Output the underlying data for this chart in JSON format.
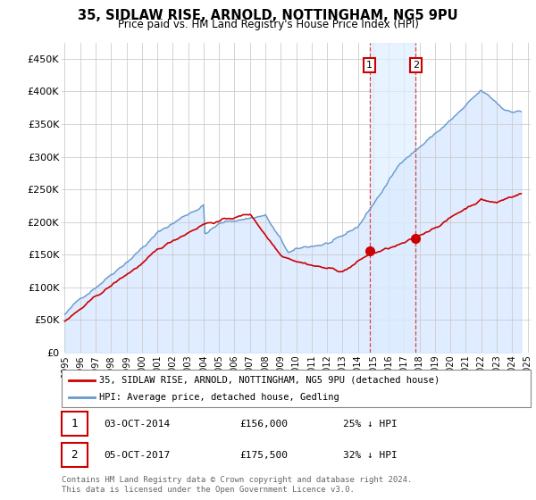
{
  "title": "35, SIDLAW RISE, ARNOLD, NOTTINGHAM, NG5 9PU",
  "subtitle": "Price paid vs. HM Land Registry's House Price Index (HPI)",
  "ylim": [
    0,
    475000
  ],
  "yticks": [
    0,
    50000,
    100000,
    150000,
    200000,
    250000,
    300000,
    350000,
    400000,
    450000
  ],
  "ytick_labels": [
    "£0",
    "£50K",
    "£100K",
    "£150K",
    "£200K",
    "£250K",
    "£300K",
    "£350K",
    "£400K",
    "£450K"
  ],
  "background_color": "#ffffff",
  "plot_bg_color": "#ffffff",
  "grid_color": "#cccccc",
  "hpi_color": "#6699cc",
  "hpi_fill_color": "#cce0ff",
  "price_color": "#cc0000",
  "marker_color": "#cc0000",
  "sale1_price": 156000,
  "sale1_x": 2014.75,
  "sale2_price": 175500,
  "sale2_x": 2017.75,
  "vline_color": "#dd4444",
  "shade_color": "#ddeeff",
  "legend_label_price": "35, SIDLAW RISE, ARNOLD, NOTTINGHAM, NG5 9PU (detached house)",
  "legend_label_hpi": "HPI: Average price, detached house, Gedling",
  "footnote": "Contains HM Land Registry data © Crown copyright and database right 2024.\nThis data is licensed under the Open Government Licence v3.0.",
  "table_rows": [
    {
      "num": "1",
      "date": "03-OCT-2014",
      "price": "£156,000",
      "pct": "25% ↓ HPI"
    },
    {
      "num": "2",
      "date": "05-OCT-2017",
      "price": "£175,500",
      "pct": "32% ↓ HPI"
    }
  ],
  "xtick_years": [
    1995,
    1996,
    1997,
    1998,
    1999,
    2000,
    2001,
    2002,
    2003,
    2004,
    2005,
    2006,
    2007,
    2008,
    2009,
    2010,
    2011,
    2012,
    2013,
    2014,
    2015,
    2016,
    2017,
    2018,
    2019,
    2020,
    2021,
    2022,
    2023,
    2024,
    2025
  ],
  "xlim": [
    1994.8,
    2025.2
  ]
}
